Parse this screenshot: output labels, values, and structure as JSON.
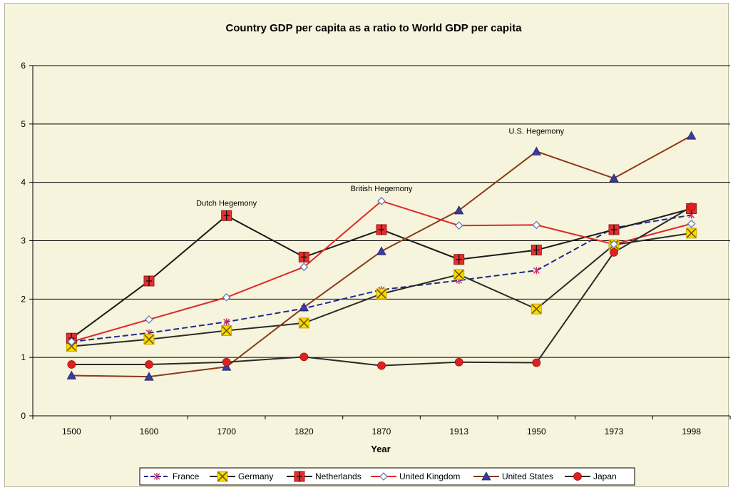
{
  "chart_data": {
    "type": "line",
    "title": "Country GDP per capita as a ratio to World GDP per capita",
    "xlabel": "Year",
    "ylabel": "",
    "categories": [
      "1500",
      "1600",
      "1700",
      "1820",
      "1870",
      "1913",
      "1950",
      "1973",
      "1998"
    ],
    "y_ticks": [
      "0",
      "1",
      "2",
      "3",
      "4",
      "5",
      "6"
    ],
    "ylim": [
      0,
      6
    ],
    "grid": "horizontal",
    "legend_position": "bottom",
    "series": [
      {
        "name": "France",
        "color": "#1f2a8c",
        "dash": "dashed",
        "marker": "star",
        "values": [
          1.27,
          1.42,
          1.61,
          1.84,
          2.16,
          2.32,
          2.49,
          3.22,
          3.44
        ]
      },
      {
        "name": "Germany",
        "color": "#2a2a2a",
        "marker_color": "#ffd800",
        "dash": "solid",
        "marker": "x-square",
        "values": [
          1.19,
          1.31,
          1.46,
          1.59,
          2.09,
          2.42,
          1.83,
          2.93,
          3.13
        ]
      },
      {
        "name": "Netherlands",
        "color": "#1a1a1a",
        "marker_color": "#e03030",
        "dash": "solid",
        "marker": "plus-square",
        "values": [
          1.33,
          2.31,
          3.43,
          2.72,
          3.19,
          2.68,
          2.84,
          3.19,
          3.55
        ]
      },
      {
        "name": "United Kingdom",
        "color": "#e02828",
        "marker_color": "#6a7ab0",
        "dash": "solid",
        "marker": "diamond",
        "values": [
          1.27,
          1.65,
          2.03,
          2.55,
          3.68,
          3.26,
          3.27,
          2.94,
          3.29
        ]
      },
      {
        "name": "United States",
        "color": "#8b3a18",
        "marker_color": "#3a3aa0",
        "dash": "solid",
        "marker": "triangle",
        "values": [
          0.69,
          0.67,
          0.84,
          1.86,
          2.82,
          3.52,
          4.53,
          4.07,
          4.8
        ]
      },
      {
        "name": "Japan",
        "color": "#2a2a2a",
        "marker_color": "#e02020",
        "dash": "solid",
        "marker": "circle",
        "values": [
          0.88,
          0.88,
          0.92,
          1.01,
          0.86,
          0.92,
          0.91,
          2.8,
          3.58
        ]
      }
    ],
    "annotations": [
      {
        "text": "Dutch Hegemony",
        "category": "1700",
        "value": 3.6
      },
      {
        "text": "British Hegemony",
        "category": "1870",
        "value": 3.85
      },
      {
        "text": "U.S. Hegemony",
        "category": "1950",
        "value": 4.83
      }
    ]
  }
}
